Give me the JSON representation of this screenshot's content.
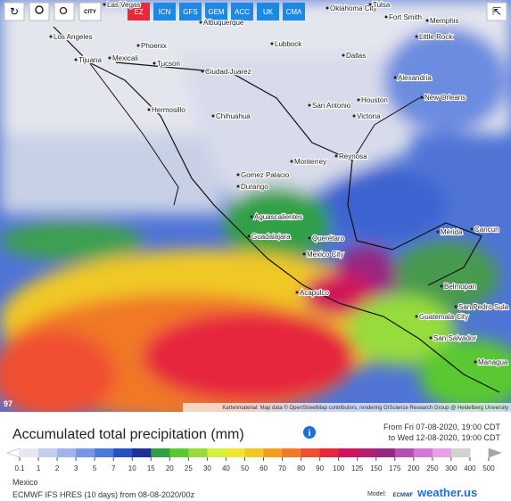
{
  "toolbar": {
    "city_icon": "CITY",
    "models": [
      "EZ",
      "ICN",
      "GFS",
      "GEM",
      "ACC",
      "UK",
      "CMA"
    ]
  },
  "map": {
    "cities": [
      "Las Vegas",
      "Oklahoma City",
      "Tulsa",
      "Fort Smith",
      "Memphis",
      "Little Rock",
      "Los Angeles",
      "Phoenix",
      "Albuquerque",
      "Lubbock",
      "Dallas",
      "Tijuana",
      "Mexicali",
      "Tucson",
      "Ciudad Juarez",
      "Alexandria",
      "New Orleans",
      "Hermosillo",
      "Chihuahua",
      "San Antonio",
      "Houston",
      "Victoria",
      "Monterrey",
      "Reynosa",
      "Gomez Palacio",
      "Durango",
      "Aguascalientes",
      "Guadalajara",
      "Querétaro",
      "Mérida",
      "Cancun",
      "Mexico City",
      "Acapulco",
      "Belmopan",
      "San Pedro Sula",
      "Guatemala City",
      "San Salvador",
      "Managua"
    ],
    "attribution": "Kartenmaterial: Map data © OpenStreetMap contributors, rendering GIScience Research Group @ Heidelberg University",
    "corner_label": "97"
  },
  "header": {
    "title": "Accumulated total precipitation (mm)",
    "from": "From Fri 07-08-2020, 19:00 CDT",
    "to": "to Wed 12-08-2020, 19:00 CDT"
  },
  "legend": {
    "labels": [
      0.1,
      1,
      2,
      3,
      5,
      7,
      10,
      15,
      20,
      25,
      30,
      40,
      50,
      60,
      70,
      80,
      90,
      100,
      125,
      150,
      175,
      200,
      250,
      300,
      400,
      500
    ],
    "colors": [
      "#ffffff",
      "#e6e6f5",
      "#c3cdf0",
      "#a0b4ea",
      "#7896e6",
      "#4c78dc",
      "#2850c0",
      "#1e3296",
      "#32a046",
      "#5ac832",
      "#96dc3c",
      "#d2f03c",
      "#f0e632",
      "#f0c828",
      "#f0a01e",
      "#f07828",
      "#f05032",
      "#e6283c",
      "#d2145a",
      "#b41e6e",
      "#962882",
      "#b450b4",
      "#d278d2",
      "#e6a0e6",
      "#d2d2d2",
      "#a5a5a5"
    ]
  },
  "footer": {
    "region": "Mexico",
    "model_run": "ECMWF IFS HRES (10 days) from 08-08-2020/00z",
    "model_label": "Model:",
    "model_logo": "ECMWF",
    "brand": "weather.us"
  }
}
